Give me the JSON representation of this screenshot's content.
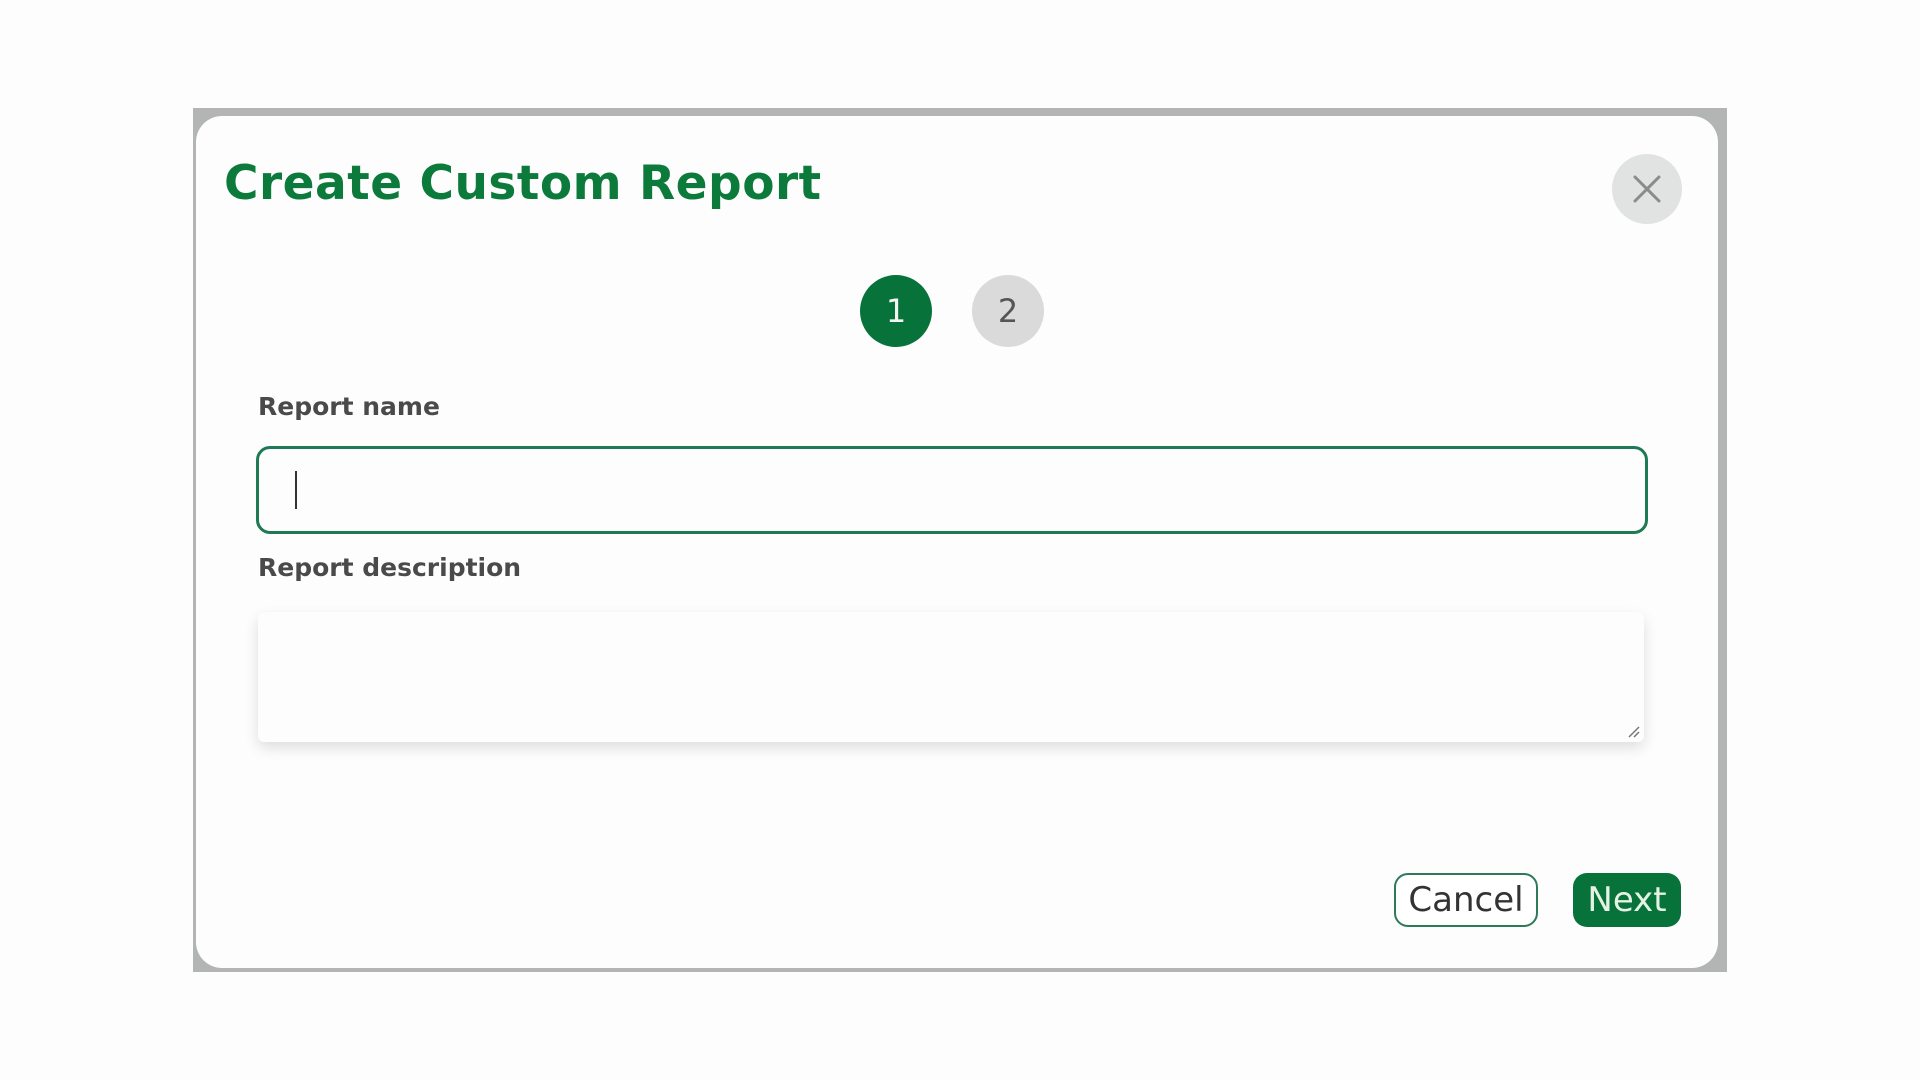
{
  "dialog": {
    "title": "Create Custom Report",
    "close_icon": "close-icon",
    "steps": [
      {
        "label": "1",
        "state": "active"
      },
      {
        "label": "2",
        "state": "inactive"
      }
    ],
    "fields": {
      "report_name": {
        "label": "Report name",
        "value": ""
      },
      "report_description": {
        "label": "Report description",
        "value": ""
      }
    },
    "buttons": {
      "cancel": "Cancel",
      "next": "Next"
    },
    "colors": {
      "accent": "#07733a",
      "title": "#0b7a3b",
      "step_inactive": "#d9dad9"
    }
  }
}
